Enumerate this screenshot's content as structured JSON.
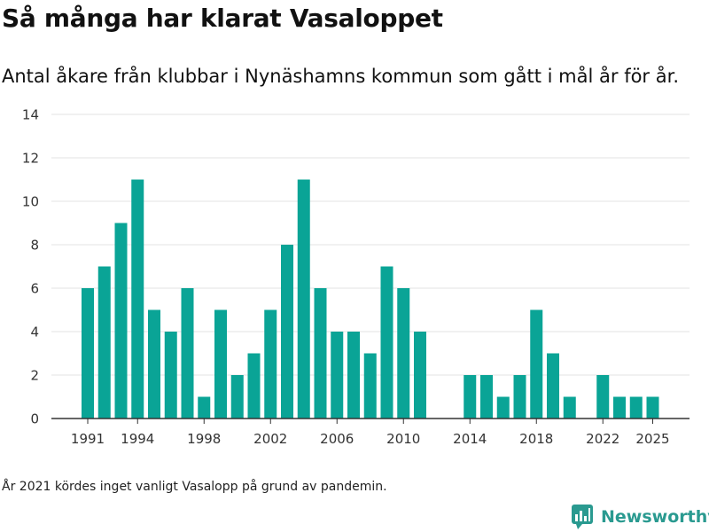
{
  "header": {
    "title": "Så många har klarat Vasaloppet",
    "subtitle": "Antal åkare från klubbar i Nynäshamns kommun som gått i mål år för år."
  },
  "footer": {
    "note": "År 2021 kördes inget vanligt Vasalopp på grund av pandemin.",
    "brand": "Newsworthy",
    "brand_icon": "newsworthy-chart-logo-icon"
  },
  "colors": {
    "bar": "#0aa496",
    "grid": "#e3e3e3",
    "axis": "#333333",
    "brand": "#2a9a90"
  },
  "chart_data": {
    "type": "bar",
    "title": "Så många har klarat Vasaloppet",
    "subtitle": "Antal åkare från klubbar i Nynäshamns kommun som gått i mål år för år.",
    "x": [
      1991,
      1992,
      1993,
      1994,
      1995,
      1996,
      1997,
      1998,
      1999,
      2000,
      2001,
      2002,
      2003,
      2004,
      2005,
      2006,
      2007,
      2008,
      2009,
      2010,
      2011,
      2012,
      2013,
      2014,
      2015,
      2016,
      2017,
      2018,
      2019,
      2020,
      2021,
      2022,
      2023,
      2024,
      2025
    ],
    "values": [
      6,
      7,
      9,
      11,
      5,
      4,
      6,
      1,
      5,
      2,
      3,
      5,
      8,
      11,
      6,
      4,
      4,
      3,
      7,
      6,
      4,
      0,
      0,
      2,
      2,
      1,
      2,
      5,
      3,
      1,
      0,
      2,
      1,
      1,
      1
    ],
    "xticks": [
      "1991",
      "1994",
      "1998",
      "2002",
      "2006",
      "2010",
      "2014",
      "2018",
      "2022",
      "2025"
    ],
    "yticks": [
      "0",
      "2",
      "4",
      "6",
      "8",
      "10",
      "12",
      "14"
    ],
    "ylim": [
      0,
      14
    ],
    "xlabel": "",
    "ylabel": "",
    "grid": true,
    "legend": "none"
  }
}
